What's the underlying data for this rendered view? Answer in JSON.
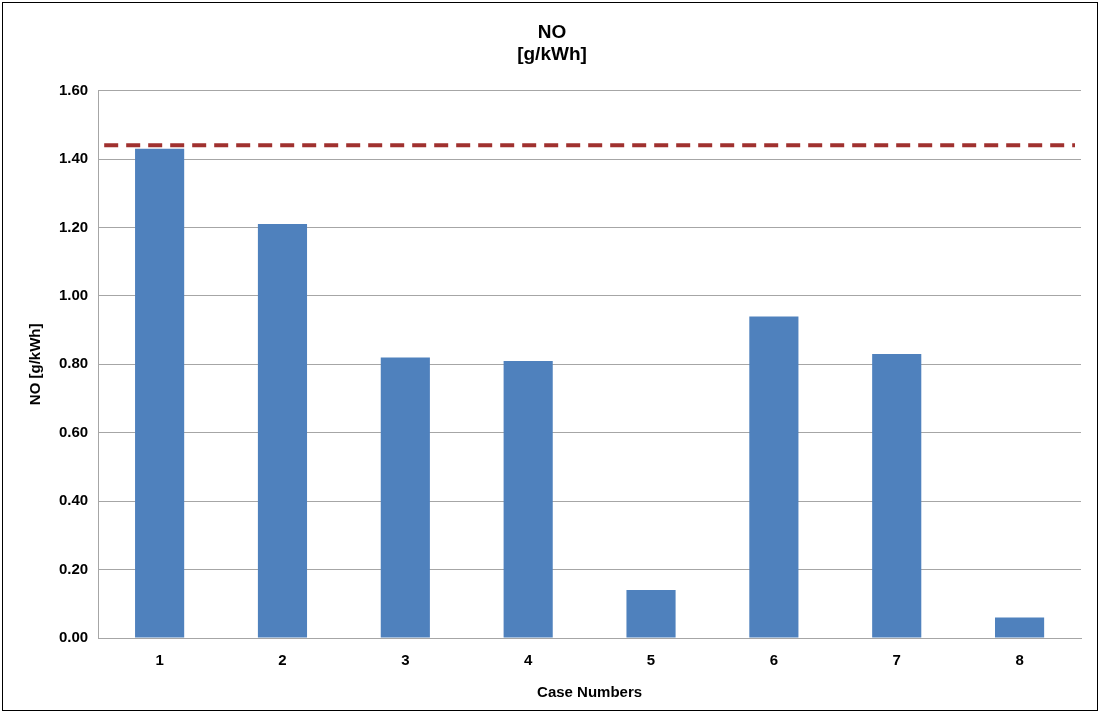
{
  "chart_data": {
    "type": "bar",
    "title": "NO\n[g/kWh]",
    "xlabel": "Case Numbers",
    "ylabel": "NO [g/kWh]",
    "categories": [
      "1",
      "2",
      "3",
      "4",
      "5",
      "6",
      "7",
      "8"
    ],
    "values": [
      1.43,
      1.21,
      0.82,
      0.81,
      0.14,
      0.94,
      0.83,
      0.06
    ],
    "color": "#4f81bd",
    "ylim": [
      0,
      1.6
    ],
    "yticks": [
      {
        "value": 0,
        "label": "0.00"
      },
      {
        "value": 0.2,
        "label": "0.20"
      },
      {
        "value": 0.4,
        "label": "0.40"
      },
      {
        "value": 0.6,
        "label": "0.60"
      },
      {
        "value": 0.8,
        "label": "0.80"
      },
      {
        "value": 1,
        "label": "1.00"
      },
      {
        "value": 1.2,
        "label": "1.20"
      },
      {
        "value": 1.4,
        "label": "1.40"
      },
      {
        "value": 1.6,
        "label": "1.60"
      }
    ],
    "grid": "y",
    "legend": false,
    "ref_lines": [
      {
        "axis": "y",
        "value": 1.44,
        "color": "#a0312f",
        "line_style": "dashed"
      }
    ]
  }
}
